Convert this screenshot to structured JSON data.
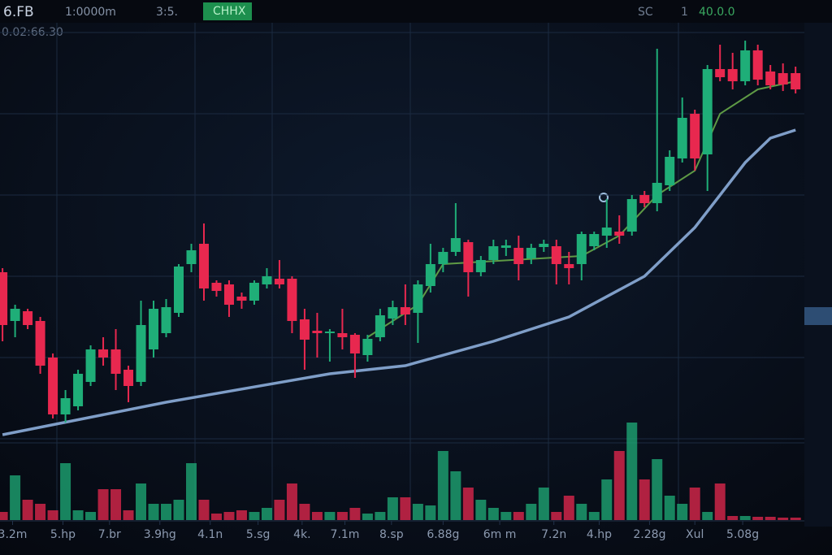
{
  "chart_data": {
    "type": "candlestick",
    "annotations": [
      "6.FB",
      "1:0000m",
      "3:5.",
      "CHHX",
      "0.02:66.30",
      "SC",
      "1",
      "40.0.0"
    ],
    "x": [
      0,
      1,
      2,
      3,
      4,
      5,
      6,
      7,
      8,
      9,
      10,
      11,
      12,
      13,
      14,
      15,
      16,
      17,
      18,
      19,
      20,
      21,
      22,
      23,
      24,
      25,
      26,
      27,
      28,
      29,
      30,
      31,
      32,
      33,
      34,
      35,
      36,
      37,
      38,
      39,
      40,
      41,
      42,
      43,
      44,
      45,
      46,
      47,
      48,
      49,
      50,
      51,
      52,
      53,
      54,
      55,
      56,
      57,
      58,
      59,
      60,
      61,
      62,
      63
    ],
    "open": [
      205,
      145,
      157,
      145,
      100,
      30,
      40,
      70,
      110,
      110,
      85,
      70,
      110,
      130,
      155,
      215,
      240,
      192,
      190,
      175,
      170,
      190,
      197,
      197,
      147,
      133,
      130,
      130,
      128,
      103,
      125,
      148,
      162,
      155,
      188,
      215,
      230,
      242,
      205,
      220,
      235,
      235,
      222,
      236,
      237,
      215,
      215,
      237,
      250,
      255,
      255,
      300,
      290,
      312,
      345,
      400,
      350,
      455,
      455,
      440,
      478,
      452,
      450,
      450
    ],
    "high": [
      210,
      165,
      160,
      150,
      105,
      60,
      85,
      115,
      125,
      135,
      90,
      170,
      170,
      172,
      215,
      240,
      265,
      195,
      195,
      180,
      195,
      210,
      220,
      200,
      160,
      155,
      135,
      160,
      130,
      128,
      160,
      170,
      190,
      195,
      240,
      235,
      290,
      245,
      225,
      245,
      245,
      250,
      240,
      245,
      245,
      230,
      255,
      255,
      295,
      275,
      300,
      305,
      480,
      355,
      420,
      405,
      460,
      485,
      475,
      490,
      485,
      460,
      462,
      458
    ],
    "low": [
      120,
      125,
      135,
      80,
      25,
      20,
      35,
      65,
      90,
      60,
      45,
      65,
      100,
      125,
      150,
      205,
      170,
      175,
      150,
      160,
      165,
      185,
      185,
      130,
      85,
      100,
      95,
      110,
      75,
      95,
      120,
      140,
      140,
      118,
      180,
      205,
      225,
      175,
      200,
      215,
      225,
      195,
      215,
      230,
      190,
      190,
      195,
      232,
      235,
      240,
      250,
      285,
      280,
      305,
      340,
      330,
      305,
      440,
      430,
      435,
      435,
      430,
      428,
      425
    ],
    "close": [
      140,
      160,
      140,
      90,
      30,
      50,
      80,
      110,
      100,
      80,
      65,
      140,
      160,
      162,
      212,
      232,
      185,
      182,
      165,
      170,
      192,
      200,
      190,
      145,
      122,
      130,
      132,
      125,
      105,
      123,
      152,
      162,
      153,
      190,
      215,
      230,
      247,
      205,
      220,
      237,
      238,
      215,
      235,
      240,
      215,
      210,
      252,
      252,
      260,
      250,
      295,
      290,
      315,
      347,
      395,
      345,
      455,
      445,
      440,
      478,
      442,
      435,
      436,
      430
    ],
    "volume": [
      10,
      55,
      25,
      20,
      12,
      70,
      12,
      10,
      38,
      38,
      12,
      45,
      20,
      20,
      25,
      70,
      25,
      8,
      10,
      12,
      10,
      15,
      25,
      45,
      20,
      10,
      10,
      10,
      15,
      8,
      10,
      28,
      28,
      20,
      18,
      85,
      60,
      40,
      25,
      15,
      10,
      10,
      20,
      40,
      10,
      30,
      20,
      10,
      50,
      85,
      120,
      50,
      75,
      30,
      20,
      40,
      10,
      45,
      5,
      5,
      4,
      4,
      3,
      3
    ],
    "up_color": "#1fae78",
    "down_color": "#e8284f",
    "series": [
      {
        "name": "MA slow",
        "color": "#7f9ec8",
        "x": [
          0,
          13,
          26,
          32,
          39,
          45,
          51,
          55,
          59,
          61,
          63
        ],
        "values": [
          5,
          45,
          80,
          90,
          120,
          150,
          200,
          260,
          340,
          370,
          380
        ]
      },
      {
        "name": "MA fast",
        "color": "#5e9a45",
        "x": [
          29,
          33,
          35,
          46,
          49,
          52,
          55,
          57,
          60,
          63
        ],
        "values": [
          125,
          165,
          215,
          225,
          250,
          300,
          330,
          400,
          430,
          440
        ]
      }
    ],
    "xlim": [
      -0.2,
      63.7
    ],
    "xticks": [
      {
        "value": 0.8,
        "label": "3.2m"
      },
      {
        "value": 4.8,
        "label": "5.hp"
      },
      {
        "value": 8.5,
        "label": "7.br"
      },
      {
        "value": 12.5,
        "label": "3.9hg"
      },
      {
        "value": 16.5,
        "label": "4.1n"
      },
      {
        "value": 20.3,
        "label": "5.sg"
      },
      {
        "value": 23.8,
        "label": "4k."
      },
      {
        "value": 27.2,
        "label": "7.1m"
      },
      {
        "value": 30.9,
        "label": "8.sp"
      },
      {
        "value": 35,
        "label": "6.88g"
      },
      {
        "value": 39.5,
        "label": "6m m"
      },
      {
        "value": 43.8,
        "label": "7.2n"
      },
      {
        "value": 47.4,
        "label": "4.hp"
      },
      {
        "value": 51.4,
        "label": "2.28g"
      },
      {
        "value": 55,
        "label": "Xul"
      },
      {
        "value": 58.8,
        "label": "5.08g"
      }
    ],
    "ylim": [
      0,
      510
    ],
    "yticks": [
      0,
      100,
      200,
      300,
      400,
      500
    ],
    "vol_ylim": [
      0,
      130
    ],
    "grid": true
  }
}
